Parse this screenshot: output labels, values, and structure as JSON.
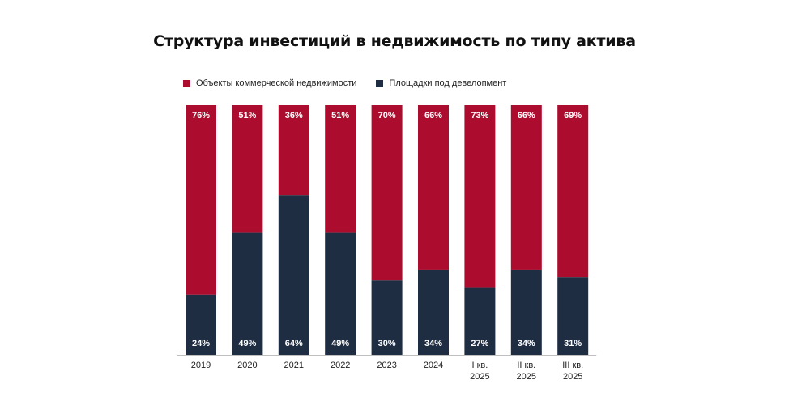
{
  "chart_data": {
    "type": "bar",
    "stacked": true,
    "title": "Структура инвестиций в недвижимость по типу актива",
    "categories": [
      [
        "2019"
      ],
      [
        "2020"
      ],
      [
        "2021"
      ],
      [
        "2022"
      ],
      [
        "2023"
      ],
      [
        "2024"
      ],
      [
        "I кв.",
        "2025"
      ],
      [
        "II кв.",
        "2025"
      ],
      [
        "III кв.",
        "2025"
      ]
    ],
    "series": [
      {
        "name": "Объекты коммерческой недвижимости",
        "color": "#ac0d2e",
        "values": [
          76,
          51,
          36,
          51,
          70,
          66,
          73,
          66,
          69
        ],
        "labels": [
          "76%",
          "51%",
          "36%",
          "51%",
          "70%",
          "66%",
          "73%",
          "66%",
          "69%"
        ]
      },
      {
        "name": "Площадки под девелопмент",
        "color": "#1e2d42",
        "values": [
          24,
          49,
          64,
          49,
          30,
          34,
          27,
          34,
          31
        ],
        "labels": [
          "24%",
          "49%",
          "64%",
          "49%",
          "30%",
          "34%",
          "27%",
          "34%",
          "31%"
        ]
      }
    ],
    "ylim": [
      0,
      100
    ],
    "unit": "%",
    "grid": false,
    "legend_position": "top-left"
  }
}
